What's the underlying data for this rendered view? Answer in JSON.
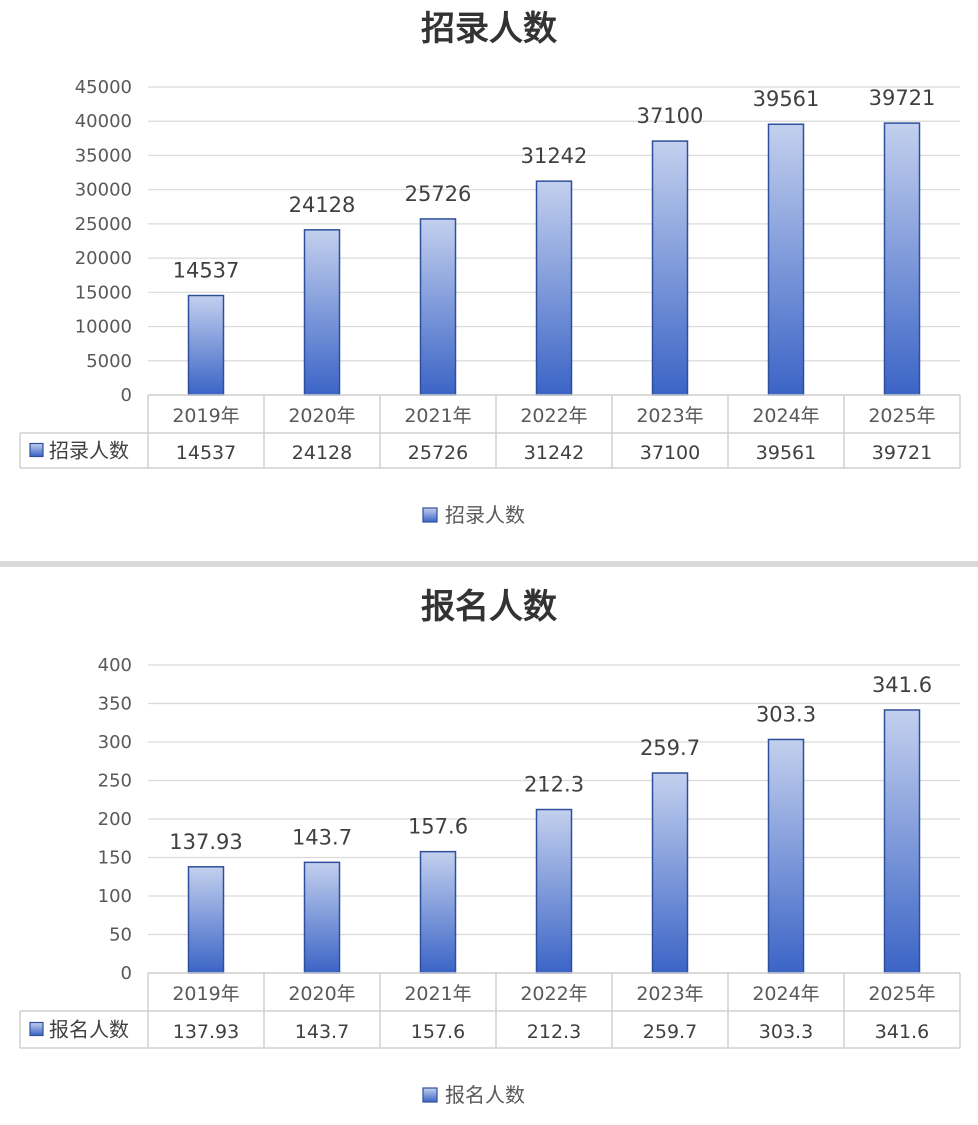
{
  "chart_data": [
    {
      "type": "bar",
      "title": "招录人数",
      "categories": [
        "2019年",
        "2020年",
        "2021年",
        "2022年",
        "2023年",
        "2024年",
        "2025年"
      ],
      "series": [
        {
          "name": "招录人数",
          "values": [
            14537,
            24128,
            25726,
            31242,
            37100,
            39561,
            39721
          ]
        }
      ],
      "data_labels": [
        "14537",
        "24128",
        "25726",
        "31242",
        "37100",
        "39561",
        "39721"
      ],
      "table_values": [
        "14537",
        "24128",
        "25726",
        "31242",
        "37100",
        "39561",
        "39721"
      ],
      "ylim": [
        0,
        45000
      ],
      "yticks": [
        0,
        5000,
        10000,
        15000,
        20000,
        25000,
        30000,
        35000,
        40000,
        45000
      ],
      "grid": true,
      "legend_position": "bottom",
      "data_table": true,
      "bar_color_top": "#c3d0ee",
      "bar_color_bottom": "#3b64c6",
      "bar_edge_color": "#2f4f9c"
    },
    {
      "type": "bar",
      "title": "报名人数",
      "categories": [
        "2019年",
        "2020年",
        "2021年",
        "2022年",
        "2023年",
        "2024年",
        "2025年"
      ],
      "series": [
        {
          "name": "报名人数",
          "values": [
            137.93,
            143.7,
            157.6,
            212.3,
            259.7,
            303.3,
            341.6
          ]
        }
      ],
      "data_labels": [
        "137.93",
        "143.7",
        "157.6",
        "212.3",
        "259.7",
        "303.3",
        "341.6"
      ],
      "table_values": [
        "137.93",
        "143.7",
        "157.6",
        "212.3",
        "259.7",
        "303.3",
        "341.6"
      ],
      "ylim": [
        0,
        400
      ],
      "yticks": [
        0,
        50,
        100,
        150,
        200,
        250,
        300,
        350,
        400
      ],
      "grid": true,
      "legend_position": "bottom",
      "data_table": true,
      "bar_color_top": "#c3d0ee",
      "bar_color_bottom": "#3b64c6",
      "bar_edge_color": "#2f4f9c"
    }
  ]
}
